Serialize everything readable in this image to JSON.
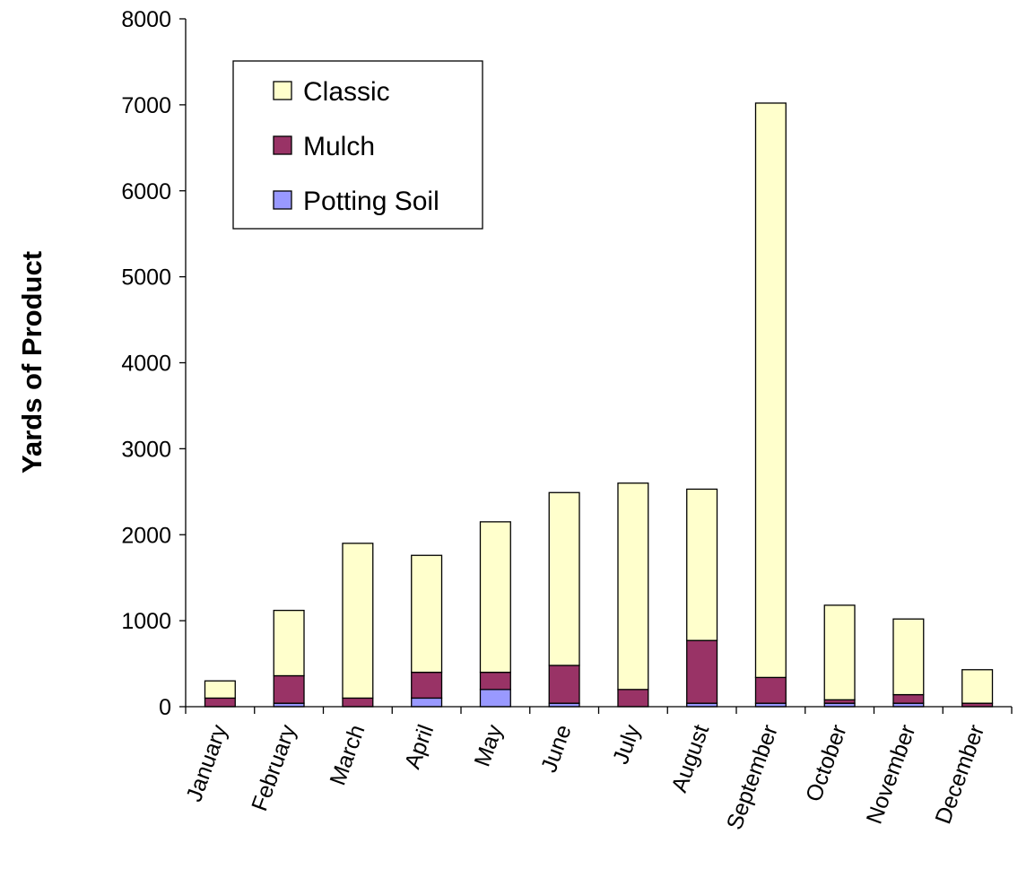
{
  "chart_data": {
    "type": "bar",
    "stacked": true,
    "title": "",
    "xlabel": "",
    "ylabel": "Yards of Product",
    "ylim": [
      0,
      8000
    ],
    "yticks": [
      0,
      1000,
      2000,
      3000,
      4000,
      5000,
      6000,
      7000,
      8000
    ],
    "grid": false,
    "legend_position": "top-left",
    "categories": [
      "January",
      "February",
      "March",
      "April",
      "May",
      "June",
      "July",
      "August",
      "September",
      "October",
      "November",
      "December"
    ],
    "series": [
      {
        "name": "Potting Soil",
        "color": "#9999ff",
        "values": [
          0,
          40,
          0,
          100,
          200,
          40,
          0,
          40,
          40,
          40,
          40,
          0
        ]
      },
      {
        "name": "Mulch",
        "color": "#993366",
        "values": [
          100,
          320,
          100,
          300,
          200,
          440,
          200,
          730,
          300,
          40,
          100,
          40
        ]
      },
      {
        "name": "Classic",
        "color": "#ffffcc",
        "values": [
          200,
          760,
          1800,
          1360,
          1750,
          2010,
          2400,
          1760,
          6680,
          1100,
          880,
          390
        ]
      }
    ],
    "legend_order": [
      "Classic",
      "Mulch",
      "Potting Soil"
    ]
  }
}
